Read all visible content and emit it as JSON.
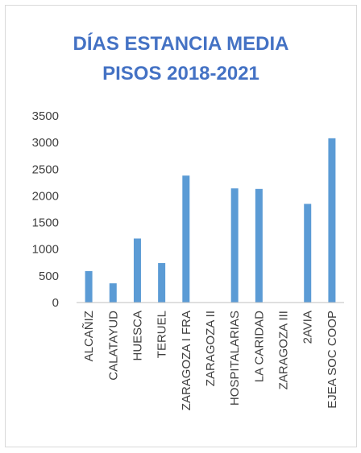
{
  "chart_data": {
    "type": "bar",
    "title_lines": [
      "DÍAS ESTANCIA MEDIA",
      "PISOS 2018-2021"
    ],
    "categories": [
      "ALCAÑIZ",
      "CALATAYUD",
      "HUESCA",
      "TERUEL",
      "ZARAGOZA I FRA",
      "ZARAGOZA II",
      "HOSPITALARIAS",
      "LA CARIDAD",
      "ZARAGOZA III",
      "2AVIA",
      "EJEA SOC COOP"
    ],
    "values": [
      590,
      360,
      1200,
      740,
      2380,
      0,
      2140,
      2130,
      0,
      1850,
      3080
    ],
    "yticks": [
      "0",
      "500",
      "1000",
      "1500",
      "2000",
      "2500",
      "3000",
      "3500"
    ],
    "ylim": [
      0,
      3500
    ],
    "grid": false,
    "legend": "none",
    "bar_color": "#5b9bd5"
  }
}
